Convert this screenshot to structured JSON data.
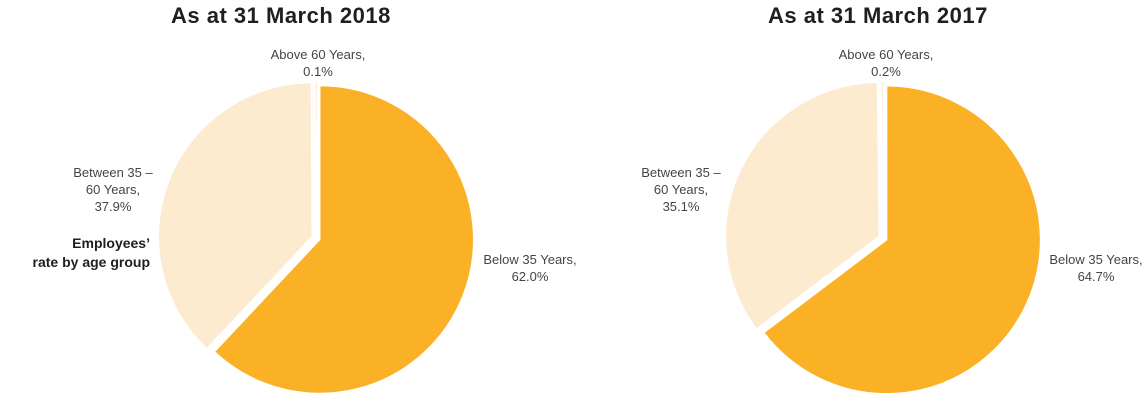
{
  "side_label": {
    "line1": "Employees’",
    "line2": "rate by age group"
  },
  "colors": {
    "below_35": "#FBB125",
    "between_35_60": "#FDEBD0",
    "above_60": "#FDEBD0"
  },
  "chart_data": [
    {
      "type": "pie",
      "title": "As at 31 March 2018",
      "slices": [
        {
          "label_line1": "Below 35 Years,",
          "value_text": "62.0%",
          "value": 62.0
        },
        {
          "label_line1": "Between 35 –",
          "label_line2": "60 Years,",
          "value_text": "37.9%",
          "value": 37.9
        },
        {
          "label_line1": "Above 60 Years,",
          "value_text": "0.1%",
          "value": 0.1
        }
      ]
    },
    {
      "type": "pie",
      "title": "As at 31 March 2017",
      "slices": [
        {
          "label_line1": "Below 35 Years,",
          "value_text": "64.7%",
          "value": 64.7
        },
        {
          "label_line1": "Between 35 –",
          "label_line2": "60 Years,",
          "value_text": "35.1%",
          "value": 35.1
        },
        {
          "label_line1": "Above 60 Years,",
          "value_text": "0.2%",
          "value": 0.2
        }
      ]
    }
  ]
}
